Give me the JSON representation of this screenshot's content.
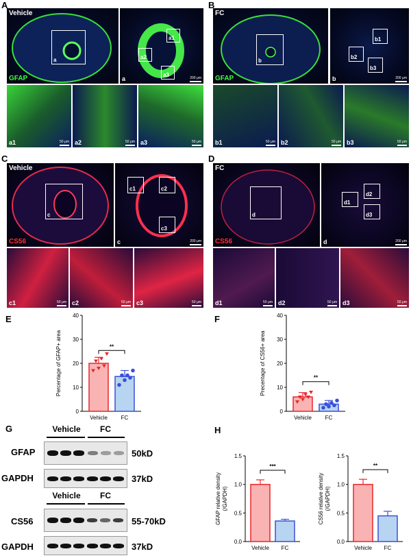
{
  "panels": {
    "A": {
      "letter": "A",
      "tag": "Vehicle",
      "stain": "GFAP",
      "box": "a",
      "detail": "a",
      "boxes": [
        "a1",
        "a2",
        "a3"
      ],
      "scale": "200 μm",
      "subs": [
        "a1",
        "a2",
        "a3"
      ],
      "sub_scale": "50 μm"
    },
    "B": {
      "letter": "B",
      "tag": "FC",
      "stain": "GFAP",
      "box": "b",
      "detail": "b",
      "boxes": [
        "b1",
        "b2",
        "b3"
      ],
      "scale": "200 μm",
      "subs": [
        "b1",
        "b2",
        "b3"
      ],
      "sub_scale": "50 μm"
    },
    "C": {
      "letter": "C",
      "tag": "Vehicle",
      "stain": "CS56",
      "box": "c",
      "detail": "c",
      "boxes": [
        "c1",
        "c2",
        "c3"
      ],
      "scale": "200 μm",
      "subs": [
        "c1",
        "c2",
        "c3"
      ],
      "sub_scale": "50 μm"
    },
    "D": {
      "letter": "D",
      "tag": "FC",
      "stain": "CS56",
      "box": "d",
      "detail": "d",
      "boxes": [
        "d1",
        "d2",
        "d3"
      ],
      "scale": "200 μm",
      "subs": [
        "d1",
        "d2",
        "d3"
      ],
      "sub_scale": "50 μm"
    }
  },
  "colors": {
    "vehicle_fill": "#f9b3b3",
    "vehicle_edge": "#e8262a",
    "fc_fill": "#b7d4f0",
    "fc_edge": "#3a50d8",
    "green": "#3cff3c",
    "red": "#ff3030"
  },
  "charts": {
    "E": {
      "letter": "E",
      "significance": "**"
    },
    "F": {
      "letter": "F",
      "significance": "**"
    },
    "H1": {
      "significance": "***"
    },
    "H2": {
      "significance": "**"
    }
  },
  "chart_data": [
    {
      "id": "E",
      "type": "bar",
      "categories": [
        "Vehicle",
        "FC"
      ],
      "values": [
        20,
        14.5
      ],
      "errors": [
        2.5,
        2.5
      ],
      "points": [
        [
          17,
          18,
          19,
          21,
          22,
          24
        ],
        [
          11,
          13,
          14,
          15,
          15,
          17
        ]
      ],
      "ylabel": "Percentage of  GFAP+ area",
      "ylim": [
        0,
        40
      ],
      "yticks": [
        0,
        10,
        20,
        30,
        40
      ]
    },
    {
      "id": "F",
      "type": "bar",
      "categories": [
        "Vehicle",
        "FC"
      ],
      "values": [
        6,
        3
      ],
      "errors": [
        1.8,
        1.5
      ],
      "points": [
        [
          4,
          5,
          6,
          6,
          7,
          8
        ],
        [
          1.5,
          2,
          2.5,
          3,
          3.5,
          4.5
        ]
      ],
      "ylabel": "Precentage of  CS56+ area",
      "ylim": [
        0,
        40
      ],
      "yticks": [
        0,
        10,
        20,
        30,
        40
      ]
    },
    {
      "id": "H1",
      "type": "bar",
      "categories": [
        "Vehicle",
        "FC"
      ],
      "values": [
        1.0,
        0.36
      ],
      "errors": [
        0.08,
        0.03
      ],
      "ylabel": "GFAP relative density\n(/GAPDH)",
      "ylim": [
        0,
        1.5
      ],
      "yticks": [
        0.0,
        0.5,
        1.0,
        1.5
      ],
      "ytick_labels": [
        "0.0",
        "0.5",
        "1.0",
        "1.5"
      ]
    },
    {
      "id": "H2",
      "type": "bar",
      "categories": [
        "Vehicle",
        "FC"
      ],
      "values": [
        1.0,
        0.45
      ],
      "errors": [
        0.09,
        0.08
      ],
      "ylabel": "CS56 relative density\n(/GAPDH)",
      "ylim": [
        0,
        1.5
      ],
      "yticks": [
        0.0,
        0.5,
        1.0,
        1.5
      ],
      "ytick_labels": [
        "0.0",
        "0.5",
        "1.0",
        "1.5"
      ]
    }
  ],
  "western": {
    "letter": "G",
    "cond1": [
      "Vehicle",
      "FC"
    ],
    "cond2": [
      "Vehicle",
      "FC"
    ],
    "rows": [
      {
        "label": "GFAP",
        "size": "50kD"
      },
      {
        "label": "GAPDH",
        "size": "37kD"
      },
      {
        "label": "CS56",
        "size": "55-70kD"
      },
      {
        "label": "GAPDH",
        "size": "37kD"
      }
    ]
  },
  "letter_H": "H"
}
